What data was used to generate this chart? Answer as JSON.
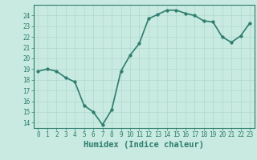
{
  "x": [
    0,
    1,
    2,
    3,
    4,
    5,
    6,
    7,
    8,
    9,
    10,
    11,
    12,
    13,
    14,
    15,
    16,
    17,
    18,
    19,
    20,
    21,
    22,
    23
  ],
  "y": [
    18.8,
    19.0,
    18.8,
    18.2,
    17.8,
    15.6,
    15.0,
    13.8,
    15.2,
    18.8,
    20.3,
    21.4,
    23.7,
    24.1,
    24.5,
    24.5,
    24.2,
    24.0,
    23.5,
    23.4,
    22.0,
    21.5,
    22.1,
    23.3
  ],
  "line_color": "#2e7d6e",
  "marker_color": "#2e7d6e",
  "bg_color": "#c8eae0",
  "grid_color": "#b0d8cc",
  "xlabel": "Humidex (Indice chaleur)",
  "ylim": [
    13.5,
    25.0
  ],
  "xlim": [
    -0.5,
    23.5
  ],
  "yticks": [
    14,
    15,
    16,
    17,
    18,
    19,
    20,
    21,
    22,
    23,
    24
  ],
  "xticks": [
    0,
    1,
    2,
    3,
    4,
    5,
    6,
    7,
    8,
    9,
    10,
    11,
    12,
    13,
    14,
    15,
    16,
    17,
    18,
    19,
    20,
    21,
    22,
    23
  ],
  "tick_label_fontsize": 5.5,
  "xlabel_fontsize": 7.5,
  "line_width": 1.2,
  "marker_size": 2.5
}
